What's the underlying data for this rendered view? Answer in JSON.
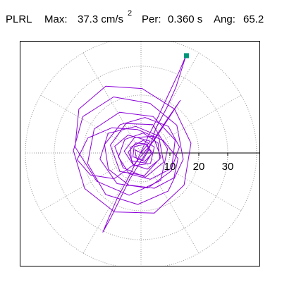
{
  "header": {
    "station_label": "PLRL",
    "max_label": "Max:",
    "max_value": "37.3 cm/s",
    "max_unit_superscript": "2",
    "period_label": "Per:",
    "period_value": "0.360 s",
    "angle_label": "Ang:",
    "angle_value": "65.2"
  },
  "colors": {
    "trace": "#8b00d8",
    "peak_marker": "#00967a",
    "grid": "#9a9a9a",
    "axis": "#000000"
  },
  "chart_data": {
    "type": "scatter",
    "description_type": "polar particle-motion plot",
    "radial_ticks": [
      10,
      20,
      30
    ],
    "radial_tick_labels": [
      "10",
      "20",
      "30"
    ],
    "radial_max": 40,
    "angular_divisions_deg": 30,
    "grid": true,
    "peak_point": {
      "x": 15.6,
      "y": 33.8
    },
    "trace_points": [
      [
        0.0,
        0.0
      ],
      [
        3.2,
        4.1
      ],
      [
        -4.5,
        6.2
      ],
      [
        -9.1,
        2.3
      ],
      [
        -6.2,
        -5.1
      ],
      [
        1.5,
        -8.4
      ],
      [
        7.8,
        -3.2
      ],
      [
        6.1,
        5.9
      ],
      [
        -1.8,
        9.2
      ],
      [
        -11.4,
        6.8
      ],
      [
        -14.2,
        -2.1
      ],
      [
        -8.3,
        -10.6
      ],
      [
        2.4,
        -12.1
      ],
      [
        10.5,
        -6.2
      ],
      [
        11.8,
        4.5
      ],
      [
        4.2,
        12.6
      ],
      [
        -7.4,
        14.1
      ],
      [
        -16.2,
        8.3
      ],
      [
        -18.5,
        -3.6
      ],
      [
        -12.2,
        -14.4
      ],
      [
        -1.1,
        -17.8
      ],
      [
        9.4,
        -13.2
      ],
      [
        14.6,
        -2.2
      ],
      [
        12.4,
        9.6
      ],
      [
        3.1,
        17.2
      ],
      [
        -9.5,
        19.4
      ],
      [
        -20.1,
        12.6
      ],
      [
        -23.4,
        0.8
      ],
      [
        -19.5,
        -12.3
      ],
      [
        -9.2,
        -20.4
      ],
      [
        4.6,
        -20.8
      ],
      [
        14.9,
        -11.1
      ],
      [
        17.3,
        3.4
      ],
      [
        11.6,
        15.2
      ],
      [
        0.4,
        22.3
      ],
      [
        -12.2,
        23.1
      ],
      [
        -21.5,
        15.2
      ],
      [
        -22.8,
        2.1
      ],
      [
        -15.3,
        -9.8
      ],
      [
        -4.1,
        -14.6
      ],
      [
        6.8,
        -9.5
      ],
      [
        9.2,
        1.4
      ],
      [
        4.1,
        9.8
      ],
      [
        -5.2,
        10.2
      ],
      [
        -10.6,
        2.7
      ],
      [
        -7.3,
        -6.4
      ],
      [
        1.2,
        -7.8
      ],
      [
        6.9,
        -1.5
      ],
      [
        4.2,
        5.8
      ],
      [
        -2.3,
        5.3
      ],
      [
        -5.8,
        0.6
      ],
      [
        -2.5,
        -4.4
      ],
      [
        3.3,
        -3.6
      ],
      [
        4.6,
        2.1
      ],
      [
        0.8,
        4.4
      ],
      [
        -3.7,
        1.9
      ],
      [
        -3.3,
        -2.7
      ],
      [
        1.6,
        -3.5
      ],
      [
        3.9,
        0.2
      ],
      [
        1.5,
        3.1
      ],
      [
        -2.4,
        2.2
      ],
      [
        -2.8,
        -1.3
      ],
      [
        0.6,
        -2.5
      ],
      [
        2.6,
        0.9
      ],
      [
        5.1,
        8.4
      ],
      [
        8.9,
        15.6
      ],
      [
        12.1,
        22.8
      ],
      [
        15.6,
        33.8
      ],
      [
        13.2,
        28.1
      ],
      [
        9.6,
        20.5
      ],
      [
        6.1,
        12.9
      ],
      [
        2.2,
        5.1
      ],
      [
        -1.4,
        -2.6
      ],
      [
        -4.8,
        -9.4
      ],
      [
        -8.3,
        -15.8
      ],
      [
        -11.1,
        -22.3
      ],
      [
        -13.2,
        -27.4
      ],
      [
        -10.5,
        -22.5
      ],
      [
        -7.4,
        -16.2
      ],
      [
        -3.9,
        -9.1
      ],
      [
        0.9,
        -1.3
      ],
      [
        5.4,
        6.2
      ],
      [
        10.2,
        13.3
      ],
      [
        13.6,
        18.2
      ],
      [
        9.8,
        12.4
      ],
      [
        4.5,
        4.3
      ],
      [
        -2.2,
        -3.8
      ],
      [
        -9.3,
        -8.9
      ],
      [
        -17.5,
        -7.6
      ],
      [
        -22.1,
        -2.3
      ],
      [
        -18.4,
        5.2
      ],
      [
        -10.1,
        8.7
      ],
      [
        -1.2,
        8.1
      ],
      [
        7.6,
        4.4
      ],
      [
        12.8,
        -1.9
      ],
      [
        11.4,
        -8.6
      ],
      [
        4.6,
        -12.2
      ],
      [
        -4.2,
        -11.1
      ],
      [
        -11.3,
        -5.6
      ],
      [
        -12.6,
        2.9
      ],
      [
        -7.2,
        9.8
      ],
      [
        1.4,
        12.3
      ],
      [
        9.5,
        9.2
      ],
      [
        13.3,
        2.1
      ],
      [
        10.6,
        -5.3
      ],
      [
        3.2,
        -9.1
      ],
      [
        -4.1,
        -7.2
      ],
      [
        -7.8,
        -1.4
      ],
      [
        -5.6,
        4.7
      ],
      [
        0.8,
        6.9
      ],
      [
        5.9,
        3.4
      ],
      [
        6.5,
        -2.1
      ],
      [
        2.2,
        -5.6
      ],
      [
        -2.6,
        -4.1
      ],
      [
        -4.4,
        0.3
      ],
      [
        -1.8,
        3.5
      ],
      [
        2.1,
        3.1
      ],
      [
        3.6,
        -0.4
      ],
      [
        1.3,
        -2.9
      ],
      [
        -1.6,
        -1.8
      ],
      [
        -2.1,
        1.1
      ],
      [
        0.0,
        0.0
      ]
    ]
  }
}
